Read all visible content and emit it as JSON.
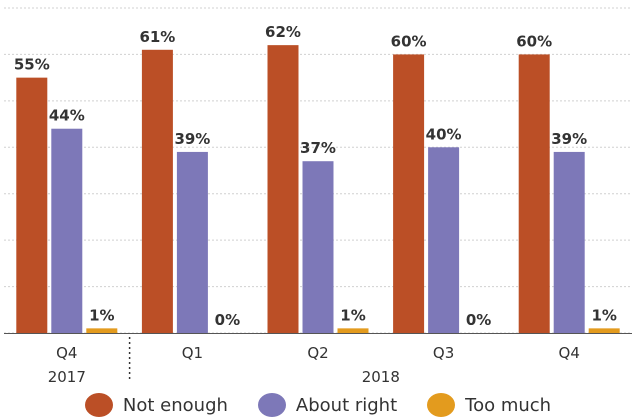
{
  "chart_data": {
    "type": "bar",
    "categories": [
      "Q4",
      "Q1",
      "Q2",
      "Q3",
      "Q4"
    ],
    "group_labels": [
      "2017",
      "2018"
    ],
    "series": [
      {
        "name": "Not enough",
        "color": "#bb4f26",
        "values": [
          55,
          61,
          62,
          60,
          60
        ]
      },
      {
        "name": "About right",
        "color": "#7d78b8",
        "values": [
          44,
          39,
          37,
          40,
          39
        ]
      },
      {
        "name": "Too much",
        "color": "#e39b1e",
        "values": [
          1,
          0,
          1,
          0,
          1
        ]
      }
    ],
    "value_suffix": "%",
    "ylim": [
      0,
      70
    ],
    "grid": true,
    "legend_position": "bottom"
  }
}
